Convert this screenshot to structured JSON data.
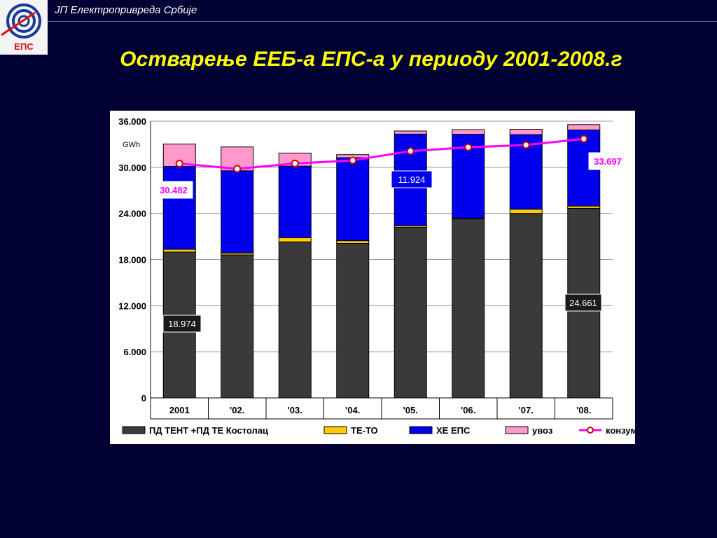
{
  "header": {
    "org_name": "ЈП Електропривреда Србије",
    "logo_text": "ЕПС"
  },
  "slide": {
    "title": "Остварење ЕЕБ-а  ЕПС-а у периоду 2001-2008.г"
  },
  "chart_data": {
    "type": "bar",
    "stacked": true,
    "unit_label": "GWh",
    "categories": [
      "2001",
      "'02.",
      "'03.",
      "'04.",
      "'05.",
      "'06.",
      "'07.",
      "'08."
    ],
    "ylim": [
      0,
      36000
    ],
    "yticks": [
      "0",
      "6.000",
      "12.000",
      "18.000",
      "24.000",
      "30.000",
      "36.000"
    ],
    "ytick_values": [
      0,
      6000,
      12000,
      18000,
      24000,
      30000,
      36000
    ],
    "grid": true,
    "legend_position": "bottom",
    "series": [
      {
        "name": "ПД ТЕНТ +ПД ТЕ Костолац",
        "kind": "bar",
        "color": "#3a3a3a",
        "values": [
          18974,
          18600,
          20300,
          20100,
          22200,
          23300,
          24000,
          24661
        ]
      },
      {
        "name": "ТЕ-ТО",
        "kind": "bar",
        "color": "#ffcc00",
        "values": [
          350,
          250,
          550,
          350,
          200,
          100,
          550,
          300
        ]
      },
      {
        "name": "ХЕ  ЕПС",
        "kind": "bar",
        "color": "#0000ee",
        "values": [
          10800,
          10700,
          9300,
          10800,
          11924,
          10900,
          9700,
          9900
        ]
      },
      {
        "name": "увоз",
        "kind": "bar",
        "color": "#ff99cc",
        "values": [
          2900,
          3100,
          1700,
          400,
          400,
          600,
          700,
          700
        ]
      },
      {
        "name": "конзум",
        "kind": "line",
        "color": "#ff00ff",
        "values": [
          30482,
          29800,
          30500,
          30900,
          32100,
          32600,
          32900,
          33697
        ]
      }
    ],
    "annotations": [
      {
        "text": "18.974",
        "style": "dark"
      },
      {
        "text": "11.924",
        "style": "blue"
      },
      {
        "text": "24.661",
        "style": "dark"
      },
      {
        "text": "30.482",
        "style": "white-magenta"
      },
      {
        "text": "33.697",
        "style": "white-magenta"
      }
    ]
  }
}
